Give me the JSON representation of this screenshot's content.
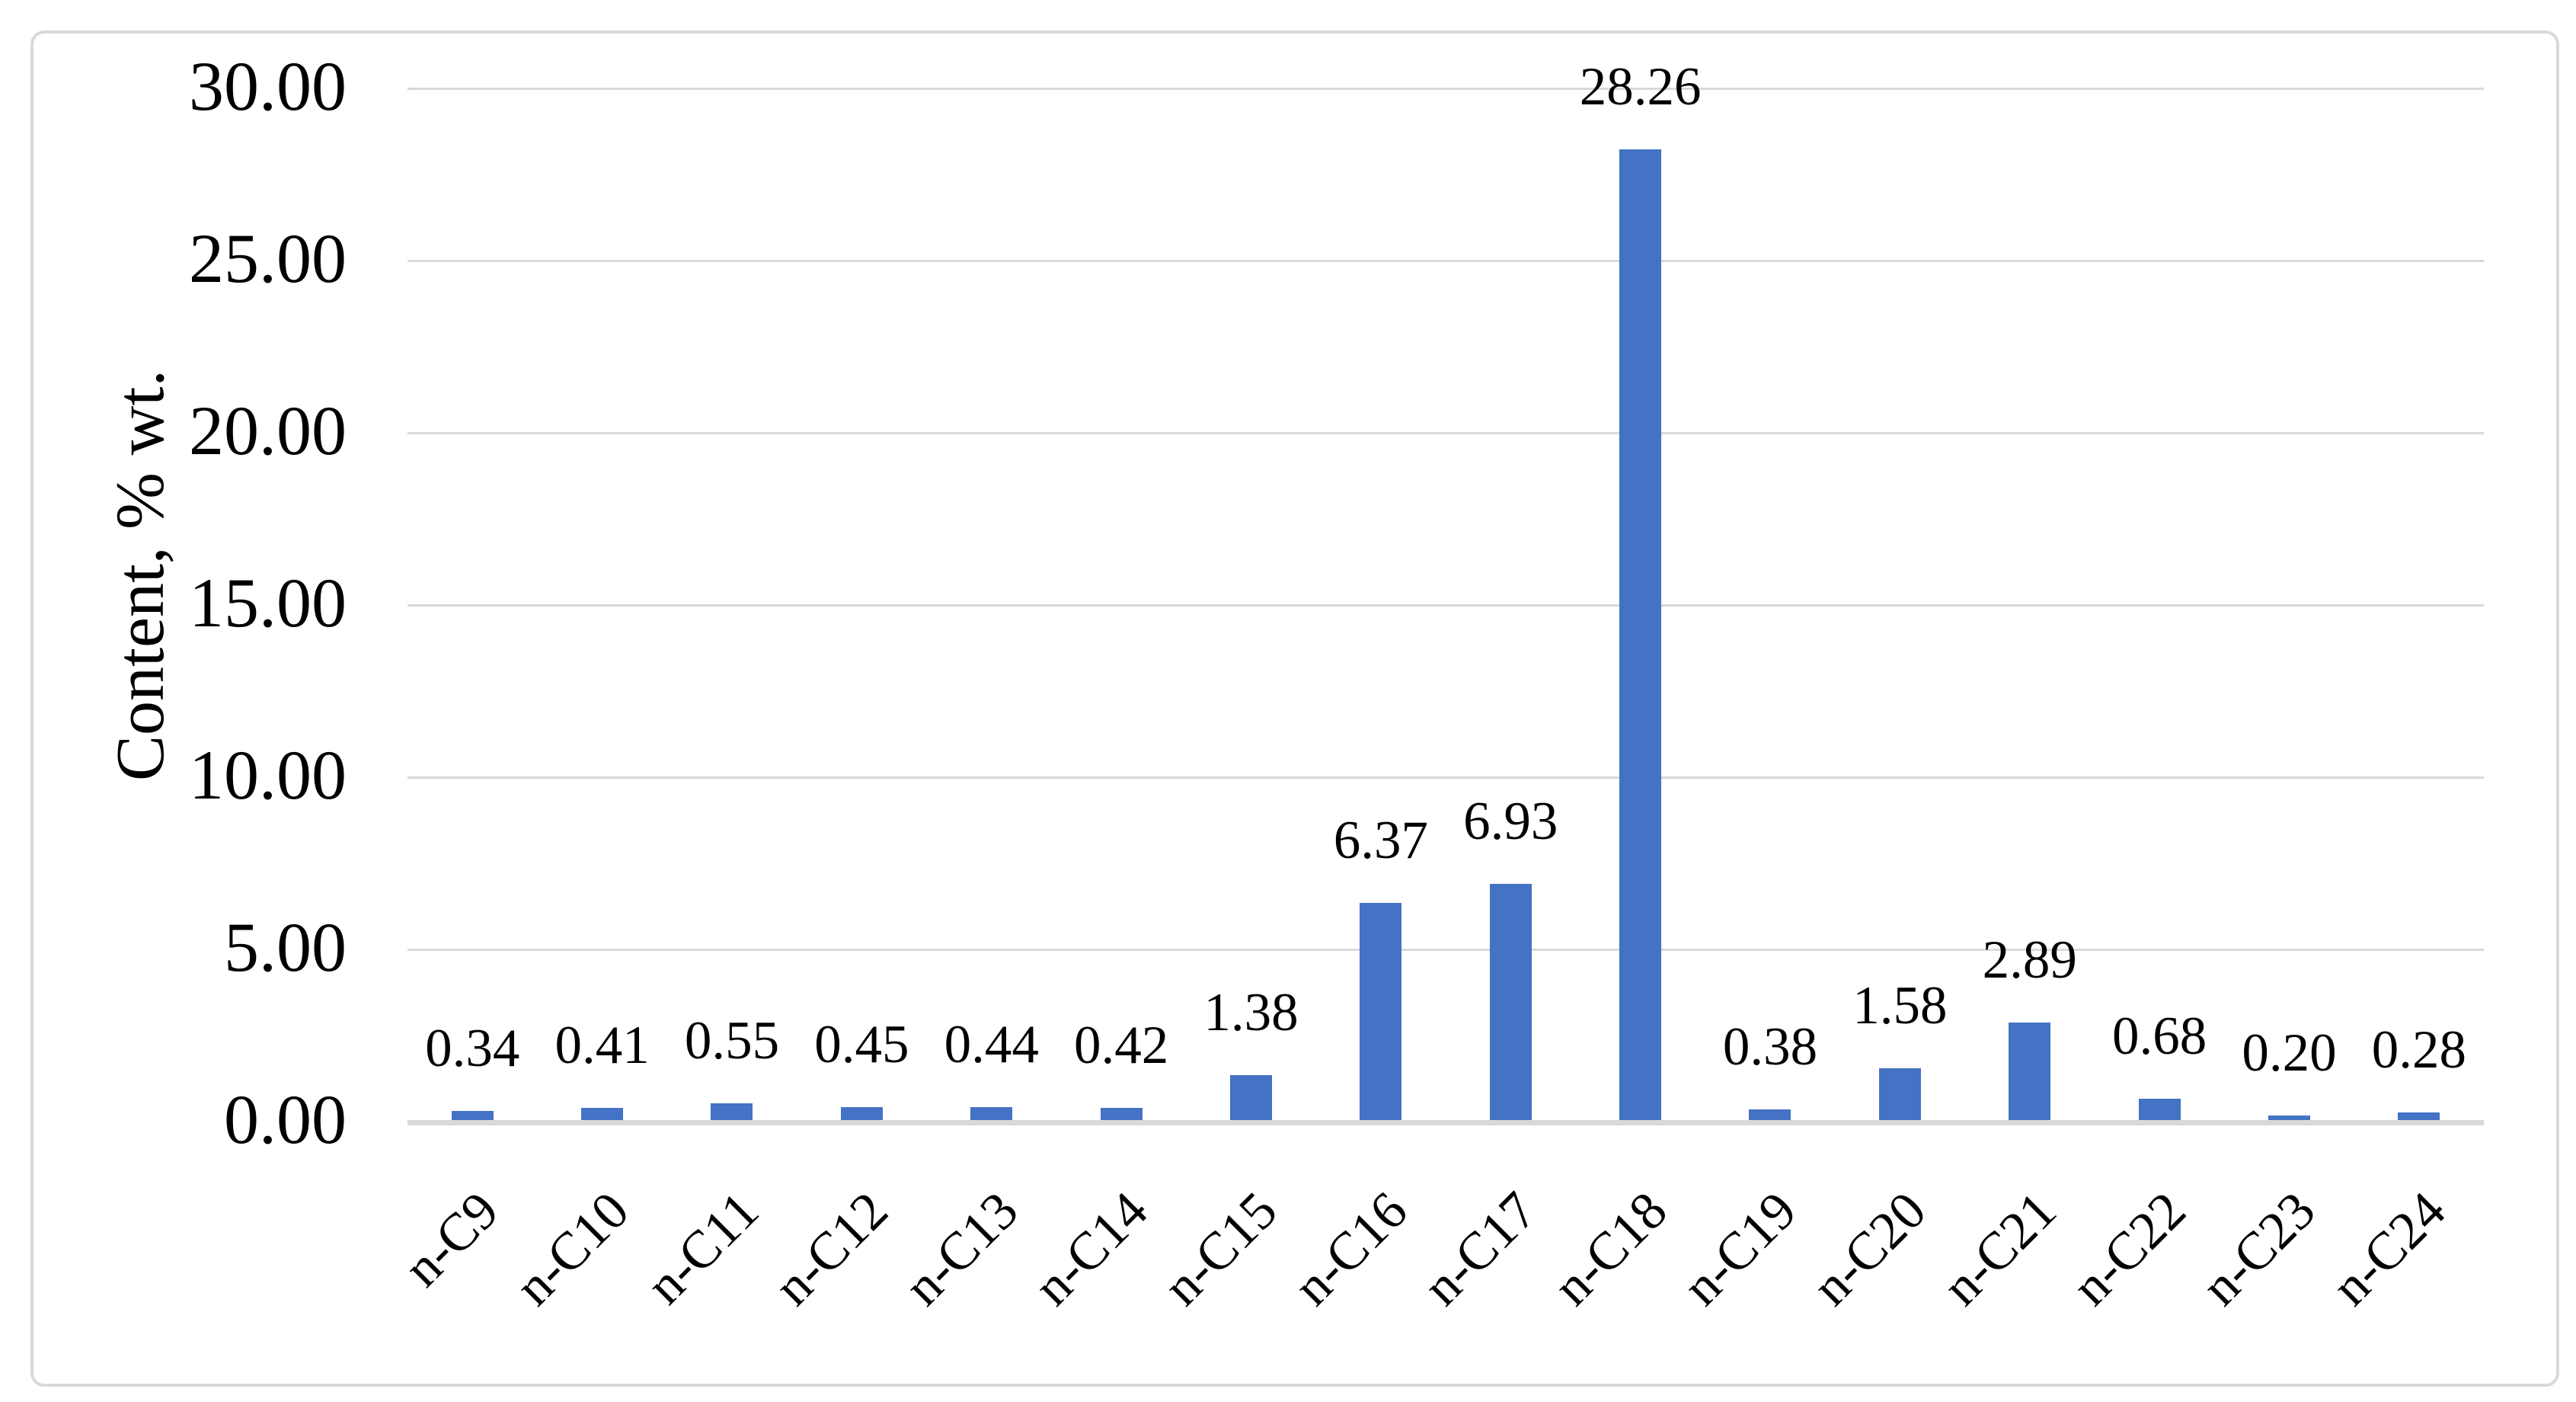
{
  "chart_data": {
    "type": "bar",
    "title": "",
    "categories": [
      "n-C9",
      "n-C10",
      "n-C11",
      "n-C12",
      "n-C13",
      "n-C14",
      "n-C15",
      "n-C16",
      "n-C17",
      "n-C18",
      "n-C19",
      "n-C20",
      "n-C21",
      "n-C22",
      "n-C23",
      "n-C24"
    ],
    "values": [
      0.34,
      0.41,
      0.55,
      0.45,
      0.44,
      0.42,
      1.38,
      6.37,
      6.93,
      28.26,
      0.38,
      1.58,
      2.89,
      0.68,
      0.2,
      0.28
    ],
    "data_labels": [
      "0.34",
      "0.41",
      "0.55",
      "0.45",
      "0.44",
      "0.42",
      "1.38",
      "6.37",
      "6.93",
      "28.26",
      "0.38",
      "1.58",
      "2.89",
      "0.68",
      "0.20",
      "0.28"
    ],
    "xlabel": "",
    "ylabel": "Content, % wt.",
    "ylim": [
      0,
      30
    ],
    "ytick_step": 5,
    "ytick_labels": [
      "0.00",
      "5.00",
      "10.00",
      "15.00",
      "20.00",
      "25.00",
      "30.00"
    ],
    "grid": "horizontal-gridlines-on",
    "legend": "none",
    "colors": {
      "bar": "#4472C4",
      "gridline": "#D9D9D9",
      "axis_line": "#D9D9D9",
      "chart_border": "#D9D9D9",
      "text": "#000000",
      "background": "#FFFFFF"
    }
  }
}
